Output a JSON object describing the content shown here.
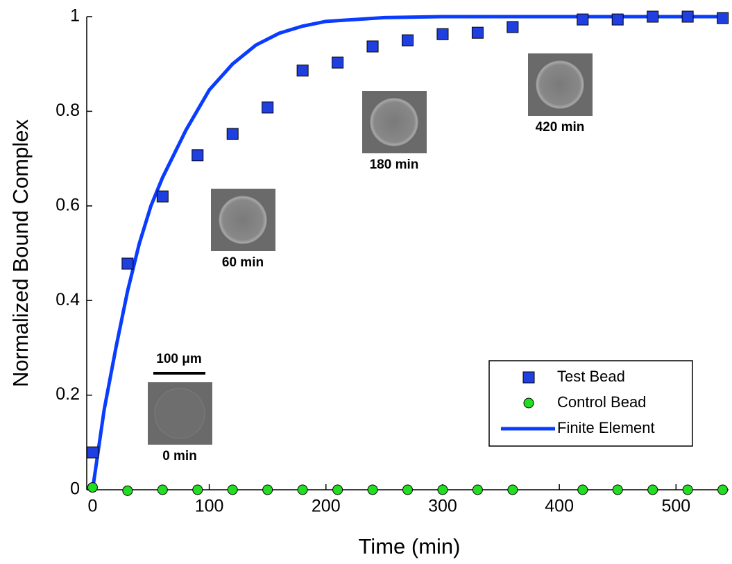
{
  "chart_data": {
    "type": "scatter",
    "x_label": "Time (min)",
    "y_label": "Normalized Bound Complex",
    "xlim": [
      -5,
      545
    ],
    "ylim": [
      0,
      1
    ],
    "xticks": [
      0,
      100,
      200,
      300,
      400,
      500
    ],
    "yticks": [
      0,
      0.2,
      0.4,
      0.6,
      0.8,
      1
    ],
    "legend_position": "lower right",
    "series": [
      {
        "name": "Test Bead",
        "color": "#1f3fe0",
        "marker": "square",
        "x": [
          0,
          30,
          60,
          90,
          120,
          150,
          180,
          210,
          240,
          270,
          300,
          330,
          360,
          420,
          450,
          480,
          510,
          540
        ],
        "values": [
          0.079,
          0.478,
          0.62,
          0.707,
          0.752,
          0.808,
          0.886,
          0.903,
          0.937,
          0.95,
          0.963,
          0.966,
          0.978,
          0.994,
          0.994,
          1.0,
          1.0,
          0.997
        ]
      },
      {
        "name": "Control Bead",
        "color": "#22dd22",
        "marker": "circle",
        "x": [
          0,
          30,
          60,
          90,
          120,
          150,
          180,
          210,
          240,
          270,
          300,
          330,
          360,
          420,
          450,
          480,
          510,
          540
        ],
        "values": [
          0.005,
          -0.002,
          0,
          0,
          0,
          0,
          0,
          0,
          0,
          0,
          0,
          0,
          0,
          0,
          0,
          0,
          0,
          0
        ]
      },
      {
        "name": "Finite Element",
        "color": "#0a3cff",
        "marker": "line",
        "x": [
          0,
          10,
          20,
          30,
          40,
          50,
          60,
          80,
          100,
          120,
          140,
          160,
          180,
          200,
          250,
          300,
          400,
          540
        ],
        "values": [
          0,
          0.17,
          0.3,
          0.42,
          0.52,
          0.6,
          0.66,
          0.76,
          0.845,
          0.9,
          0.94,
          0.965,
          0.98,
          0.99,
          0.998,
          1,
          1,
          1
        ]
      }
    ],
    "annotations": [
      "0 min",
      "60 min",
      "180 min",
      "420 min",
      "100 μm"
    ]
  }
}
